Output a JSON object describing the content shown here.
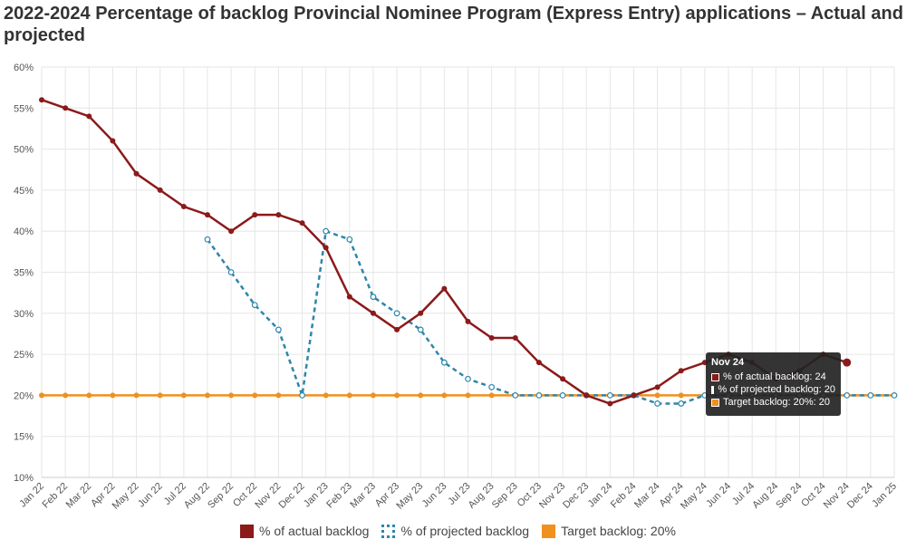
{
  "title": "2022-2024 Percentage of backlog Provincial Nominee Program (Express Entry) applications – Actual and projected",
  "colors": {
    "actual": "#8b1a1a",
    "projected": "#2e86ab",
    "target": "#f0901e",
    "grid": "#e6e6e6"
  },
  "chart_data": {
    "type": "line",
    "categories": [
      "Jan 22",
      "Feb 22",
      "Mar 22",
      "Apr 22",
      "May 22",
      "Jun 22",
      "Jul 22",
      "Aug 22",
      "Sep 22",
      "Oct 22",
      "Nov 22",
      "Dec 22",
      "Jan 23",
      "Feb 23",
      "Mar 23",
      "Apr 23",
      "May 23",
      "Jun 23",
      "Jul 23",
      "Aug 23",
      "Sep 23",
      "Oct 23",
      "Nov 23",
      "Dec 23",
      "Jan 24",
      "Feb 24",
      "Mar 24",
      "Apr 24",
      "May 24",
      "Jun 24",
      "Jul 24",
      "Aug 24",
      "Sep 24",
      "Oct 24",
      "Nov 24",
      "Dec 24",
      "Jan 25"
    ],
    "y_ticks": [
      "10%",
      "15%",
      "20%",
      "25%",
      "30%",
      "35%",
      "40%",
      "45%",
      "50%",
      "55%",
      "60%"
    ],
    "ylim": [
      10,
      60
    ],
    "grid": true,
    "legend_position": "bottom",
    "series": [
      {
        "name": "% of actual backlog",
        "style": "solid",
        "values": [
          56,
          55,
          54,
          51,
          47,
          45,
          43,
          42,
          40,
          42,
          42,
          41,
          38,
          32,
          30,
          28,
          30,
          33,
          29,
          27,
          27,
          24,
          22,
          20,
          19,
          20,
          21,
          23,
          24,
          25,
          24,
          22,
          23,
          25,
          24,
          null,
          null
        ]
      },
      {
        "name": "% of projected backlog",
        "style": "dotted",
        "values": [
          null,
          null,
          null,
          null,
          null,
          null,
          null,
          39,
          35,
          31,
          28,
          20,
          40,
          39,
          32,
          30,
          28,
          24,
          22,
          21,
          20,
          20,
          20,
          20,
          20,
          20,
          19,
          19,
          20,
          20,
          20,
          20,
          20,
          20,
          20,
          20,
          20
        ]
      },
      {
        "name": "Target backlog: 20%",
        "style": "solid",
        "values": [
          20,
          20,
          20,
          20,
          20,
          20,
          20,
          20,
          20,
          20,
          20,
          20,
          20,
          20,
          20,
          20,
          20,
          20,
          20,
          20,
          20,
          20,
          20,
          20,
          20,
          20,
          20,
          20,
          20,
          20,
          20,
          20,
          20,
          20,
          20,
          20,
          20
        ]
      }
    ]
  },
  "tooltip": {
    "title": "Nov 24",
    "rows": [
      {
        "label": "% of actual backlog: 24"
      },
      {
        "label": "% of projected backlog: 20"
      },
      {
        "label": "Target backlog: 20%: 20"
      }
    ]
  }
}
